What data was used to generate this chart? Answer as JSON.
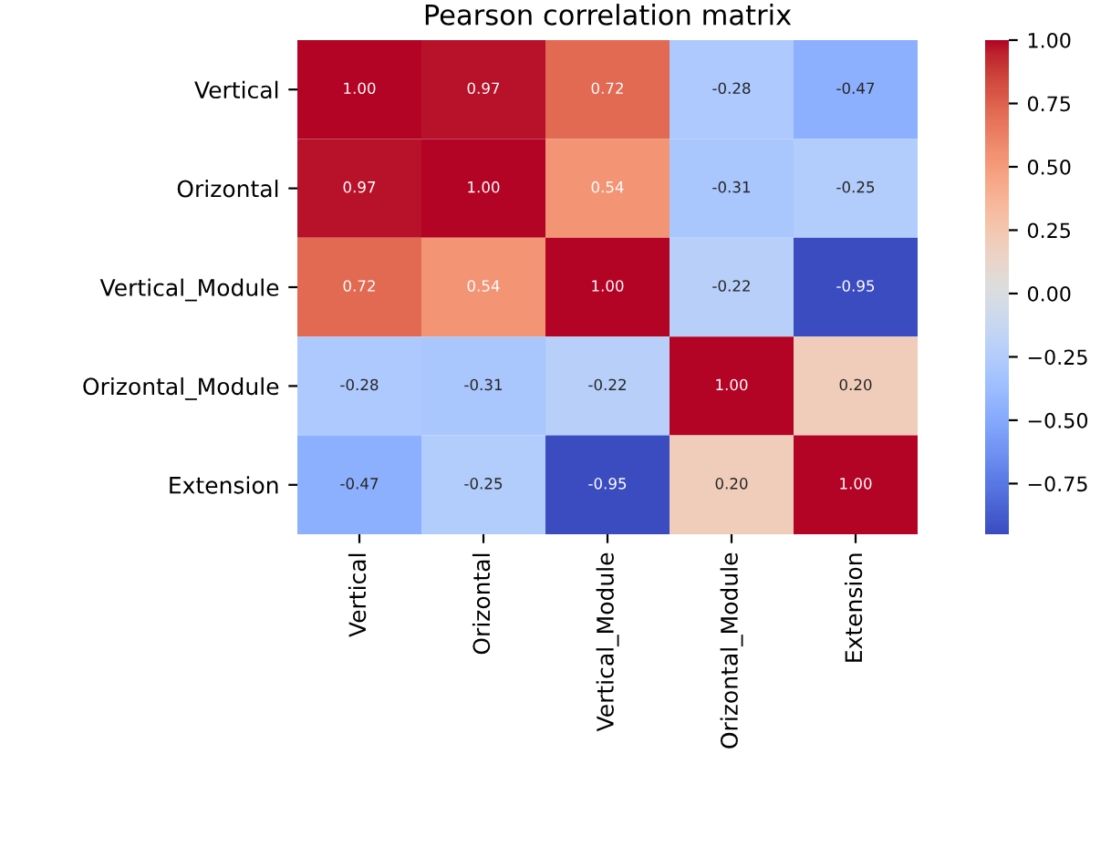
{
  "chart_data": {
    "type": "heatmap",
    "title": "Pearson correlation matrix",
    "categories": [
      "Vertical",
      "Orizontal",
      "Vertical_Module",
      "Orizontal_Module",
      "Extension"
    ],
    "y_categories": [
      "Vertical",
      "Orizontal",
      "Vertical_Module",
      "Orizontal_Module",
      "Extension"
    ],
    "cells": [
      [
        1.0,
        0.97,
        0.72,
        -0.28,
        -0.47
      ],
      [
        0.97,
        1.0,
        0.54,
        -0.31,
        -0.25
      ],
      [
        0.72,
        0.54,
        1.0,
        -0.22,
        -0.95
      ],
      [
        -0.28,
        -0.31,
        -0.22,
        1.0,
        0.2
      ],
      [
        -0.47,
        -0.25,
        -0.95,
        0.2,
        1.0
      ]
    ],
    "cell_labels": [
      [
        "1.00",
        "0.97",
        "0.72",
        "-0.28",
        "-0.47"
      ],
      [
        "0.97",
        "1.00",
        "0.54",
        "-0.31",
        "-0.25"
      ],
      [
        "0.72",
        "0.54",
        "1.00",
        "-0.22",
        "-0.95"
      ],
      [
        "-0.28",
        "-0.31",
        "-0.22",
        "1.00",
        "0.20"
      ],
      [
        "-0.47",
        "-0.25",
        "-0.95",
        "0.20",
        "1.00"
      ]
    ],
    "clim": [
      -0.95,
      1.0
    ],
    "cticks": [
      {
        "value": 1.0,
        "label": "1.00"
      },
      {
        "value": 0.75,
        "label": "0.75"
      },
      {
        "value": 0.5,
        "label": "0.50"
      },
      {
        "value": 0.25,
        "label": "0.25"
      },
      {
        "value": 0.0,
        "label": "0.00"
      },
      {
        "value": -0.25,
        "label": "−0.25"
      },
      {
        "value": -0.5,
        "label": "−0.50"
      },
      {
        "value": -0.75,
        "label": "−0.75"
      }
    ]
  }
}
